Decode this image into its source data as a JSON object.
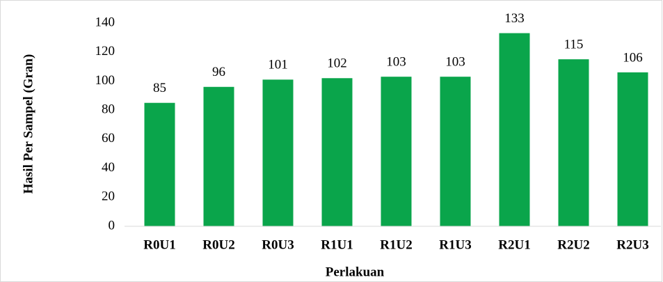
{
  "chart_data": {
    "type": "bar",
    "categories": [
      "R0U1",
      "R0U2",
      "R0U3",
      "R1U1",
      "R1U2",
      "R1U3",
      "R2U1",
      "R2U2",
      "R2U3"
    ],
    "values": [
      85,
      96,
      101,
      102,
      103,
      103,
      133,
      115,
      106
    ],
    "color": "#0aa54b",
    "ylim": [
      0,
      140
    ],
    "yticks": [
      0,
      20,
      40,
      60,
      80,
      100,
      120,
      140
    ],
    "x_label": "Perlakuan",
    "y_label": "Hasil Per Sampel (Gran)",
    "grid": false
  }
}
